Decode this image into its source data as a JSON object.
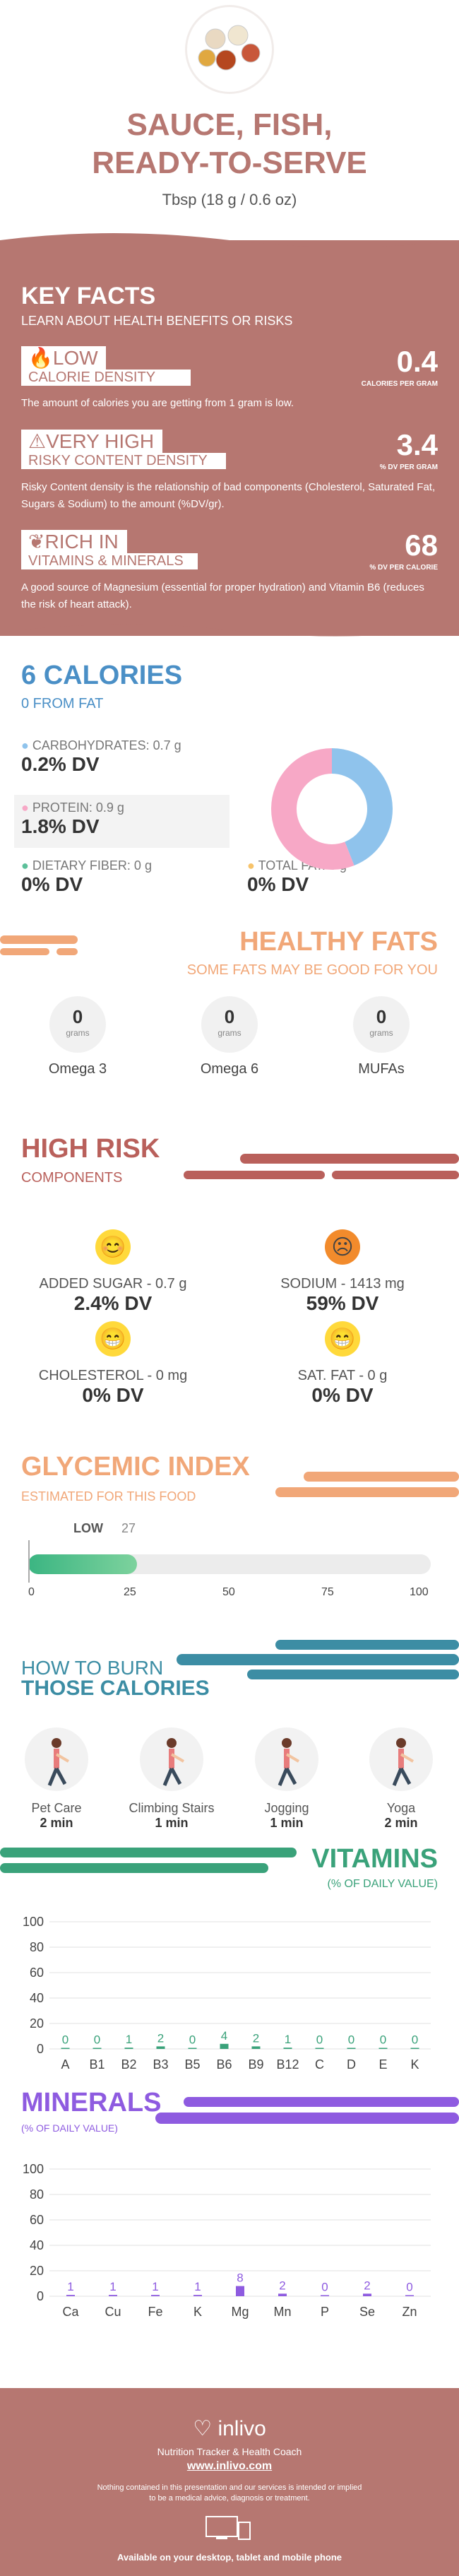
{
  "header": {
    "title_line1": "SAUCE, FISH,",
    "title_line2": "READY-TO-SERVE",
    "serving": "Tbsp (18 g / 0.6 oz)"
  },
  "key_facts": {
    "title": "KEY FACTS",
    "subtitle": "LEARN ABOUT HEALTH BENEFITS OR RISKS",
    "items": [
      {
        "tag": "LOW",
        "label": "CALORIE DENSITY",
        "value": "0.4",
        "unit": "CALORIES PER GRAM",
        "desc": "The amount of calories you are getting from 1 gram is low."
      },
      {
        "tag": "VERY HIGH",
        "label": "RISKY CONTENT DENSITY",
        "value": "3.4",
        "unit": "% DV PER GRAM",
        "desc": "Risky Content density is the relationship of bad components (Cholesterol, Saturated Fat, Sugars & Sodium) to the amount (%DV/gr)."
      },
      {
        "tag": "RICH  IN",
        "label": "VITAMINS & MINERALS",
        "value": "68",
        "unit": "% DV PER CALORIE",
        "desc": "A good source of Magnesium (essential for proper hydration) and Vitamin B6 (reduces the risk of heart attack)."
      }
    ]
  },
  "calories": {
    "title": "6 CALORIES",
    "from_fat": "0 FROM FAT",
    "carbs_label": "CARBOHYDRATES: 0.7 g",
    "carbs_dv": "0.2% DV",
    "protein_label": "PROTEIN: 0.9 g",
    "protein_dv": "1.8% DV",
    "fiber_label": "DIETARY FIBER: 0 g",
    "fiber_dv": "0% DV",
    "fat_label": "TOTAL FAT: 0 g",
    "fat_dv": "0% DV"
  },
  "donut": {
    "carbs_fraction": 0.44,
    "protein_fraction": 0.56,
    "carbs_color": "#8fc3ec",
    "protein_color": "#f7a8c6"
  },
  "healthy_fats": {
    "title": "HEALTHY FATS",
    "subtitle": "SOME FATS MAY BE GOOD FOR YOU",
    "items": [
      {
        "value": "0",
        "unit": "grams",
        "name": "Omega 3"
      },
      {
        "value": "0",
        "unit": "grams",
        "name": "Omega 6"
      },
      {
        "value": "0",
        "unit": "grams",
        "name": "MUFAs"
      }
    ]
  },
  "high_risk": {
    "title": "HIGH RISK",
    "subtitle": "COMPONENTS",
    "items": [
      {
        "label": "ADDED SUGAR - 0.7 g",
        "dv": "2.4% DV",
        "face": "happy"
      },
      {
        "label": "SODIUM - 1413 mg",
        "dv": "59% DV",
        "face": "sad"
      },
      {
        "label": "CHOLESTEROL - 0 mg",
        "dv": "0% DV",
        "face": "grin"
      },
      {
        "label": "SAT. FAT - 0 g",
        "dv": "0% DV",
        "face": "grin"
      }
    ]
  },
  "glycemic": {
    "title": "GLYCEMIC INDEX",
    "subtitle": "ESTIMATED FOR THIS FOOD",
    "level": "LOW",
    "value": "27",
    "fill_fraction": 0.27,
    "ticks": [
      "0",
      "25",
      "50",
      "75",
      "100"
    ]
  },
  "burn": {
    "title_line1": "HOW TO BURN",
    "title_line2": "THOSE CALORIES",
    "items": [
      {
        "name": "Pet Care",
        "time": "2 min"
      },
      {
        "name": "Climbing Stairs",
        "time": "1 min"
      },
      {
        "name": "Jogging",
        "time": "1 min"
      },
      {
        "name": "Yoga",
        "time": "2 min"
      }
    ]
  },
  "vitamins": {
    "title": "VITAMINS",
    "subtitle": "(% OF DAILY VALUE)"
  },
  "minerals": {
    "title": "MINERALS",
    "subtitle": "(% OF DAILY VALUE)"
  },
  "chart_data": [
    {
      "type": "bar",
      "title": "VITAMINS",
      "ylim": [
        0,
        100
      ],
      "yticks": [
        "100",
        "80",
        "60",
        "40",
        "20",
        "0"
      ],
      "categories": [
        "A",
        "B1",
        "B2",
        "B3",
        "B5",
        "B6",
        "B9",
        "B12",
        "C",
        "D",
        "E",
        "K"
      ],
      "values": [
        0,
        0,
        1,
        2,
        0,
        4,
        2,
        1,
        0,
        0,
        0,
        0
      ]
    },
    {
      "type": "bar",
      "title": "MINERALS",
      "ylim": [
        0,
        100
      ],
      "yticks": [
        "100",
        "80",
        "60",
        "40",
        "20",
        "0"
      ],
      "categories": [
        "Ca",
        "Cu",
        "Fe",
        "K",
        "Mg",
        "Mn",
        "P",
        "Se",
        "Zn"
      ],
      "values": [
        1,
        1,
        1,
        1,
        8,
        2,
        0,
        2,
        0
      ]
    }
  ],
  "footer": {
    "brand": "inlivo",
    "tagline": "Nutrition Tracker & Health Coach",
    "url": "www.inlivo.com",
    "disclaimer1": "Nothing contained in this presentation and our services is intended or implied",
    "disclaimer2": "to be a medical advice, diagnosis or treatment.",
    "available": "Available on your desktop, tablet and mobile phone"
  }
}
